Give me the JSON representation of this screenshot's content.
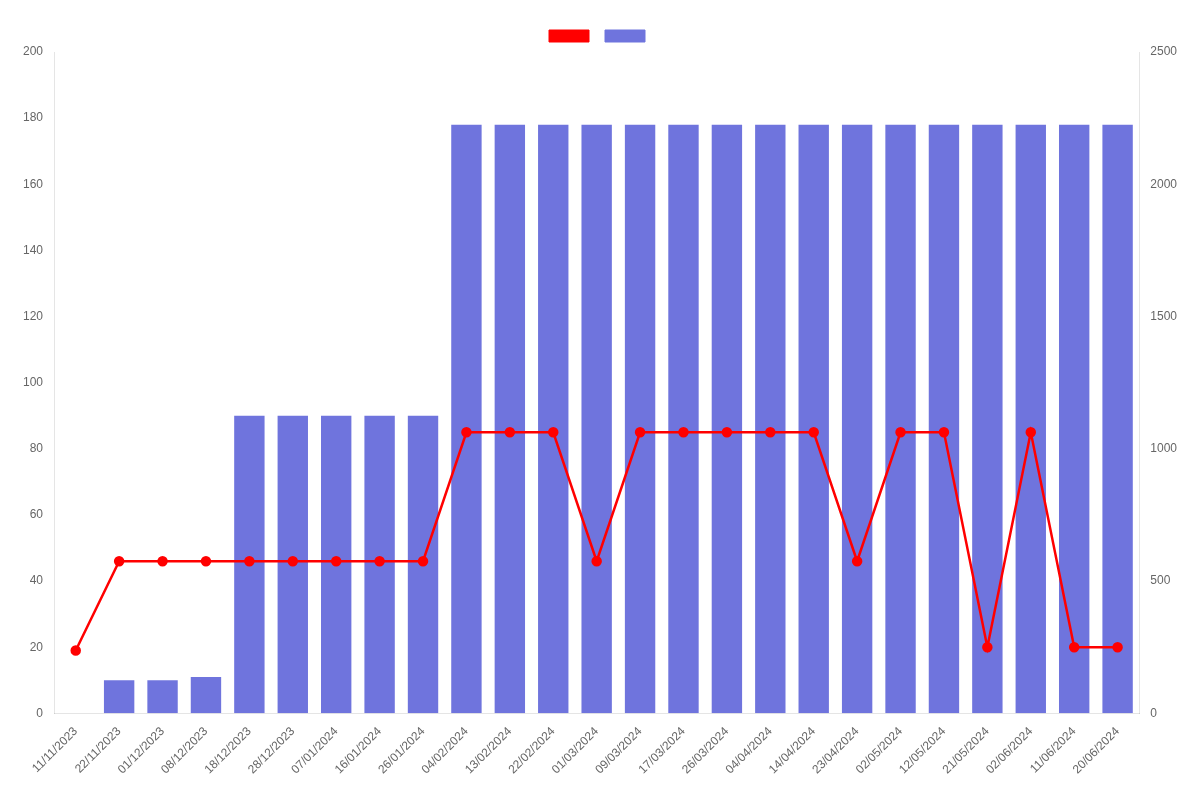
{
  "chart_data": {
    "type": "bar",
    "categories": [
      "11/11/2023",
      "22/11/2023",
      "01/12/2023",
      "08/12/2023",
      "18/12/2023",
      "28/12/2023",
      "07/01/2024",
      "16/01/2024",
      "26/01/2024",
      "04/02/2024",
      "13/02/2024",
      "22/02/2024",
      "01/03/2024",
      "09/03/2024",
      "17/03/2024",
      "26/03/2024",
      "04/04/2024",
      "14/04/2024",
      "23/04/2024",
      "02/05/2024",
      "12/05/2024",
      "21/05/2024",
      "02/06/2024",
      "11/06/2024",
      "20/06/2024"
    ],
    "series": [
      {
        "type": "bar",
        "color": "#6f74dd",
        "values": [
          0,
          10,
          10,
          11,
          90,
          90,
          90,
          90,
          90,
          178,
          178,
          178,
          178,
          178,
          178,
          178,
          178,
          178,
          178,
          178,
          178,
          178,
          178,
          178,
          178
        ]
      },
      {
        "type": "line",
        "color": "#ff0000",
        "marker": "circle",
        "line_style": "solid",
        "values": [
          19,
          46,
          46,
          46,
          46,
          46,
          46,
          46,
          46,
          85,
          85,
          85,
          46,
          85,
          85,
          85,
          85,
          85,
          46,
          85,
          85,
          20,
          85,
          20,
          20
        ]
      }
    ],
    "ylim": [
      0,
      200
    ],
    "yticks": [
      0,
      20,
      40,
      60,
      80,
      100,
      120,
      140,
      160,
      180,
      200
    ],
    "y2lim": [
      0,
      2500
    ],
    "y2ticks": [
      0,
      500,
      1000,
      1500,
      2000,
      2500
    ],
    "grid": false,
    "legend": "top"
  }
}
